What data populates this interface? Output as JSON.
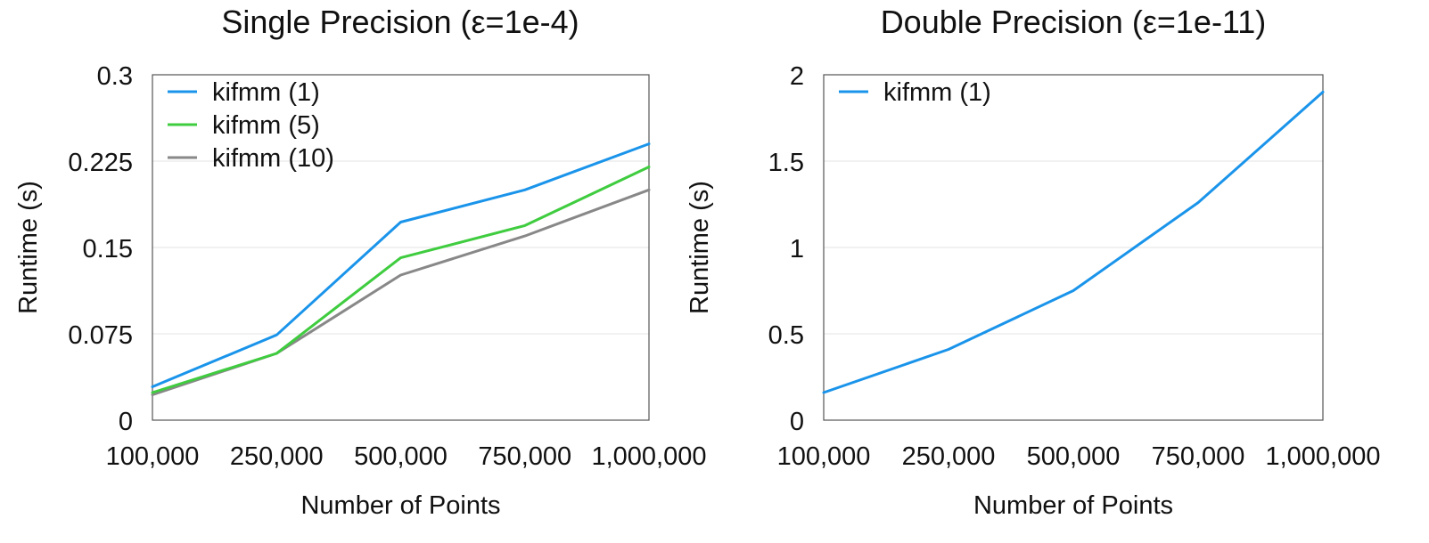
{
  "chart_data": [
    {
      "type": "line",
      "title": "Single Precision (ε=1e-4)",
      "xlabel": "Number of Points",
      "ylabel": "Runtime (s)",
      "categories": [
        "100,000",
        "250,000",
        "500,000",
        "750,000",
        "1,000,000"
      ],
      "yticks": [
        "0",
        "0.075",
        "0.15",
        "0.225",
        "0.3"
      ],
      "ylim": [
        0,
        0.3
      ],
      "grid": "horizontal",
      "legend_position": "top-left",
      "series": [
        {
          "name": "kifmm (1)",
          "color": "#1a94ea",
          "values": [
            0.029,
            0.074,
            0.172,
            0.2,
            0.24
          ]
        },
        {
          "name": "kifmm (5)",
          "color": "#3fcc3f",
          "values": [
            0.024,
            0.058,
            0.141,
            0.169,
            0.22
          ]
        },
        {
          "name": "kifmm (10)",
          "color": "#888888",
          "values": [
            0.022,
            0.058,
            0.126,
            0.16,
            0.2
          ]
        }
      ]
    },
    {
      "type": "line",
      "title": "Double Precision (ε=1e-11)",
      "xlabel": "Number of Points",
      "ylabel": "Runtime (s)",
      "categories": [
        "100,000",
        "250,000",
        "500,000",
        "750,000",
        "1,000,000"
      ],
      "yticks": [
        "0",
        "0.5",
        "1",
        "1.5",
        "2"
      ],
      "ylim": [
        0,
        2
      ],
      "grid": "horizontal",
      "legend_position": "top-left",
      "series": [
        {
          "name": "kifmm (1)",
          "color": "#1a94ea",
          "values": [
            0.16,
            0.41,
            0.75,
            1.26,
            1.9
          ]
        }
      ]
    }
  ]
}
